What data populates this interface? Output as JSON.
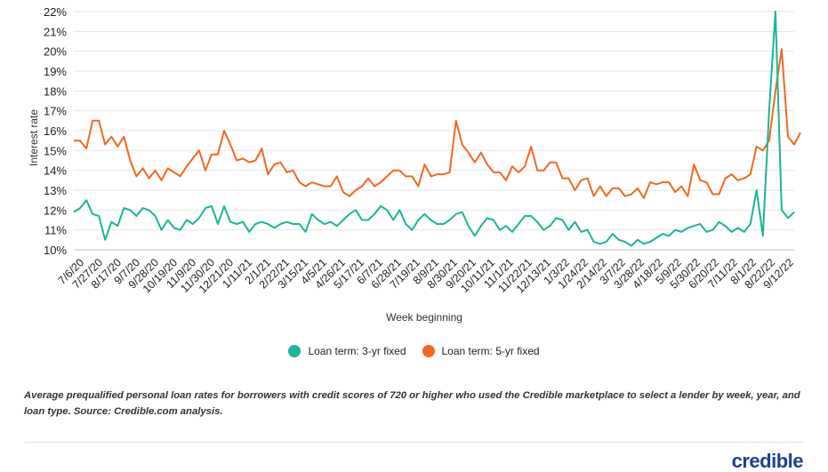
{
  "chart_data": {
    "type": "line",
    "ylabel": "Interest rate",
    "xlabel": "Week beginning",
    "ylim": [
      10,
      22
    ],
    "y_ticks": [
      "10%",
      "11%",
      "12%",
      "13%",
      "14%",
      "15%",
      "16%",
      "17%",
      "18%",
      "19%",
      "20%",
      "21%",
      "22%"
    ],
    "x_tick_labels": [
      "7/6/20",
      "7/27/20",
      "8/17/20",
      "9/7/20",
      "9/28/20",
      "10/19/20",
      "11/9/20",
      "11/30/20",
      "12/21/20",
      "1/11/21",
      "2/1/21",
      "2/22/21",
      "3/15/21",
      "4/5/21",
      "4/26/21",
      "5/17/21",
      "6/7/21",
      "6/28/21",
      "7/19/21",
      "8/9/21",
      "8/30/21",
      "9/20/21",
      "10/11/21",
      "11/1/21",
      "11/22/21",
      "12/13/21",
      "1/3/22",
      "1/24/22",
      "2/14/22",
      "3/7/22",
      "3/28/22",
      "4/18/22",
      "5/9/22",
      "5/30/22",
      "6/20/22",
      "7/11/22",
      "8/1/22",
      "8/22/22",
      "9/12/22"
    ],
    "grid": "horizontal",
    "legend_position": "bottom",
    "series": [
      {
        "name": "Loan term: 3-yr fixed",
        "color": "#1ab59a",
        "values": [
          11.9,
          12.1,
          12.5,
          11.8,
          11.7,
          10.5,
          11.4,
          11.2,
          12.1,
          12.0,
          11.7,
          12.1,
          12.0,
          11.7,
          11.0,
          11.5,
          11.1,
          11.0,
          11.5,
          11.3,
          11.6,
          12.1,
          12.2,
          11.3,
          12.2,
          11.4,
          11.3,
          11.4,
          10.9,
          11.3,
          11.4,
          11.3,
          11.1,
          11.3,
          11.4,
          11.3,
          11.3,
          10.9,
          11.8,
          11.5,
          11.3,
          11.4,
          11.2,
          11.5,
          11.8,
          12.0,
          11.5,
          11.5,
          11.8,
          12.2,
          12.0,
          11.5,
          12.0,
          11.3,
          11.0,
          11.5,
          11.8,
          11.5,
          11.3,
          11.3,
          11.5,
          11.8,
          11.9,
          11.2,
          10.7,
          11.2,
          11.6,
          11.5,
          11.0,
          11.2,
          10.9,
          11.3,
          11.7,
          11.7,
          11.4,
          11.0,
          11.2,
          11.6,
          11.5,
          11.0,
          11.4,
          10.9,
          11.0,
          10.4,
          10.3,
          10.4,
          10.8,
          10.5,
          10.4,
          10.2,
          10.5,
          10.3,
          10.4,
          10.6,
          10.8,
          10.7,
          11.0,
          10.9,
          11.1,
          11.2,
          11.3,
          10.9,
          11.0,
          11.4,
          11.2,
          10.9,
          11.1,
          10.9,
          11.3,
          13.0,
          10.7,
          17.0,
          22.0,
          12.0,
          11.6,
          11.9
        ]
      },
      {
        "name": "Loan term: 5-yr fixed",
        "color": "#f26822",
        "values": [
          15.5,
          15.5,
          15.1,
          16.5,
          16.5,
          15.3,
          15.7,
          15.2,
          15.7,
          14.5,
          13.7,
          14.1,
          13.6,
          14.0,
          13.5,
          14.1,
          13.9,
          13.7,
          14.2,
          14.6,
          15.0,
          14.0,
          14.8,
          14.8,
          16.0,
          15.3,
          14.5,
          14.6,
          14.4,
          14.5,
          15.1,
          13.8,
          14.3,
          14.4,
          13.9,
          14.0,
          13.4,
          13.2,
          13.4,
          13.3,
          13.2,
          13.2,
          13.7,
          12.9,
          12.7,
          13.0,
          13.2,
          13.6,
          13.2,
          13.4,
          13.7,
          14.0,
          14.0,
          13.7,
          13.7,
          13.2,
          14.3,
          13.7,
          13.8,
          13.8,
          13.9,
          16.5,
          15.3,
          14.9,
          14.4,
          14.9,
          14.3,
          13.9,
          13.9,
          13.5,
          14.2,
          13.9,
          14.2,
          15.2,
          14.0,
          14.0,
          14.4,
          14.4,
          13.6,
          13.6,
          13.0,
          13.5,
          13.6,
          12.7,
          13.2,
          12.7,
          13.1,
          13.1,
          12.7,
          12.8,
          13.1,
          12.6,
          13.4,
          13.3,
          13.4,
          13.4,
          12.9,
          13.2,
          12.7,
          14.3,
          13.5,
          13.4,
          12.8,
          12.8,
          13.6,
          13.8,
          13.5,
          13.6,
          13.8,
          15.2,
          15.0,
          15.5,
          18.0,
          20.1,
          15.7,
          15.3,
          15.9
        ]
      }
    ]
  },
  "legend": [
    {
      "label": "Loan term: 3-yr fixed",
      "color": "#1ab59a"
    },
    {
      "label": "Loan term: 5-yr fixed",
      "color": "#f26822"
    }
  ],
  "note": "Average prequalified personal loan rates for borrowers with credit scores of 720 or higher who used the Credible marketplace to select a lender by week, year, and loan type. Source: Credible.com analysis.",
  "logo_text": "credible"
}
